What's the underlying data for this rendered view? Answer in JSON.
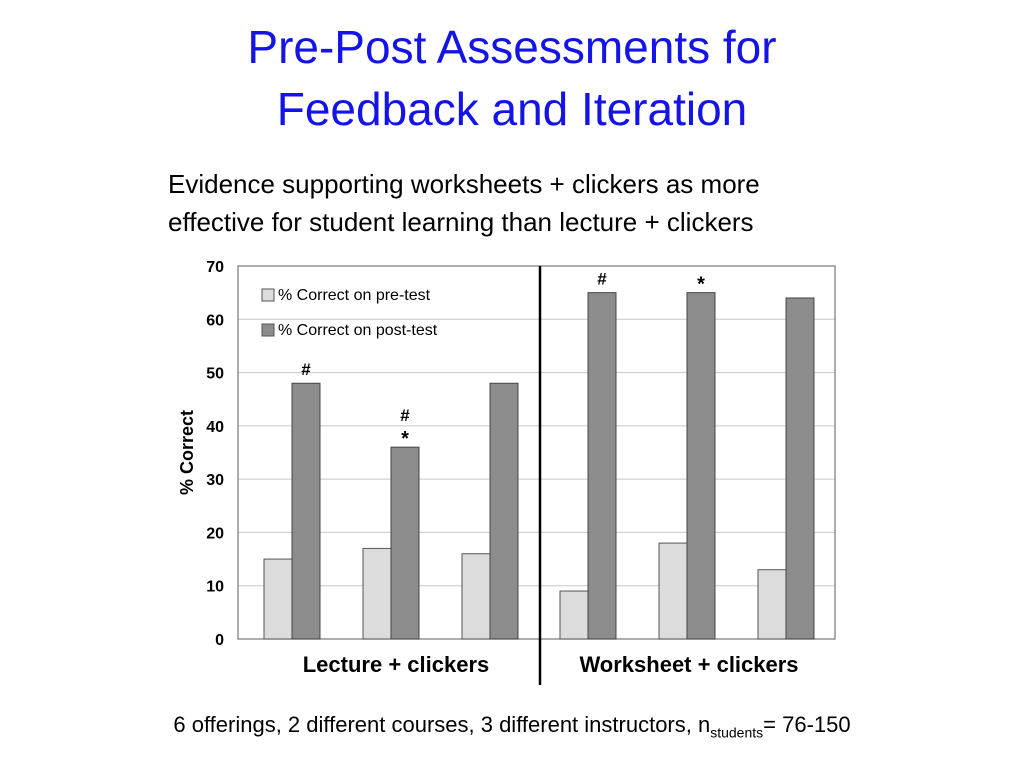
{
  "slide": {
    "title_line1": "Pre-Post Assessments for",
    "title_line2": "Feedback and Iteration",
    "subtitle_line1": "Evidence supporting worksheets + clickers as more",
    "subtitle_line2": "effective for student learning than lecture + clickers",
    "footer_prefix": "6 offerings, 2 different courses, 3 different instructors, n",
    "footer_sub": "students",
    "footer_suffix": "= 76-150"
  },
  "colors": {
    "title": "#1414e6",
    "pre_bar": "#dcdcdc",
    "post_bar": "#8c8c8c",
    "grid": "#c8c8c8"
  },
  "chart_data": {
    "type": "bar",
    "title": "",
    "ylabel": "% Correct",
    "xlabel": "",
    "ylim": [
      0,
      70
    ],
    "yticks": [
      0,
      10,
      20,
      30,
      40,
      50,
      60,
      70
    ],
    "grid": true,
    "legend_position": "top-left",
    "groups": [
      "Lecture + clickers",
      "Worksheet + clickers"
    ],
    "categories": [
      "1",
      "2",
      "3",
      "4",
      "5",
      "6"
    ],
    "category_group": [
      0,
      0,
      0,
      1,
      1,
      1
    ],
    "series": [
      {
        "name": "% Correct on pre-test",
        "values": [
          15,
          17,
          16,
          9,
          18,
          13
        ]
      },
      {
        "name": "% Correct on post-test",
        "values": [
          48,
          36,
          48,
          65,
          65,
          64
        ]
      }
    ],
    "annotations": [
      {
        "category": 0,
        "series": 1,
        "text": "#"
      },
      {
        "category": 1,
        "series": 1,
        "text": "#\n*"
      },
      {
        "category": 3,
        "series": 1,
        "text": "#"
      },
      {
        "category": 4,
        "series": 1,
        "text": "*"
      }
    ]
  }
}
